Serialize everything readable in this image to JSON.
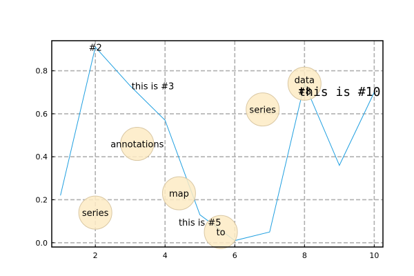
{
  "chart_data": {
    "type": "line",
    "title": "",
    "xlabel": "",
    "ylabel": "",
    "xlim": [
      0.75,
      10.25
    ],
    "ylim": [
      -0.02,
      0.94
    ],
    "xticks": [
      2,
      4,
      6,
      8,
      10
    ],
    "yticks": [
      0.0,
      0.2,
      0.4,
      0.6,
      0.8
    ],
    "xtick_labels": [
      "2",
      "4",
      "6",
      "8",
      "10"
    ],
    "ytick_labels": [
      "0.0",
      "0.2",
      "0.4",
      "0.6",
      "0.8"
    ],
    "grid": true,
    "grid_style": "dashed",
    "series": [
      {
        "color": "#1f9fe0",
        "x": [
          1,
          2,
          3,
          4,
          5,
          6,
          7,
          8,
          9,
          10
        ],
        "y": [
          0.22,
          0.91,
          0.73,
          0.57,
          0.13,
          0.01,
          0.05,
          0.74,
          0.36,
          0.7
        ]
      }
    ],
    "circle_color": "#fdebc4",
    "circle_edge": "#d9c7a3",
    "annotations": [
      {
        "text": "series",
        "x": 2.0,
        "y": 0.14,
        "circle": true,
        "color": "#000000",
        "style": "normal"
      },
      {
        "text": "annotations",
        "x": 3.2,
        "y": 0.46,
        "circle": true,
        "color": "#000000",
        "style": "normal"
      },
      {
        "text": "map",
        "x": 4.4,
        "y": 0.23,
        "circle": true,
        "color": "#000000",
        "style": "normal"
      },
      {
        "text": "to",
        "x": 5.6,
        "y": 0.05,
        "circle": true,
        "color": "#000000",
        "style": "normal"
      },
      {
        "text": "series",
        "x": 6.8,
        "y": 0.62,
        "circle": true,
        "color": "#000000",
        "style": "normal"
      },
      {
        "text": "data",
        "x": 8.0,
        "y": 0.74,
        "circle": true,
        "color": "#008000",
        "style": "normal",
        "dy": -6
      },
      {
        "text": "#2",
        "x": 2.0,
        "y": 0.91,
        "circle": false,
        "color": "#000000",
        "style": "normal"
      },
      {
        "text": "this is #3",
        "x": 3.65,
        "y": 0.73,
        "circle": false,
        "color": "#000000",
        "style": "normal"
      },
      {
        "text": "this is #5",
        "x": 5.0,
        "y": 0.095,
        "circle": false,
        "color": "#ff0000",
        "style": "normal"
      },
      {
        "text": "#8",
        "x": 8.0,
        "y": 0.705,
        "circle": false,
        "color": "#000000",
        "style": "normal"
      },
      {
        "text": "this is #10",
        "x": 9.0,
        "y": 0.7,
        "circle": false,
        "color": "#000000",
        "style": "mono"
      }
    ]
  }
}
